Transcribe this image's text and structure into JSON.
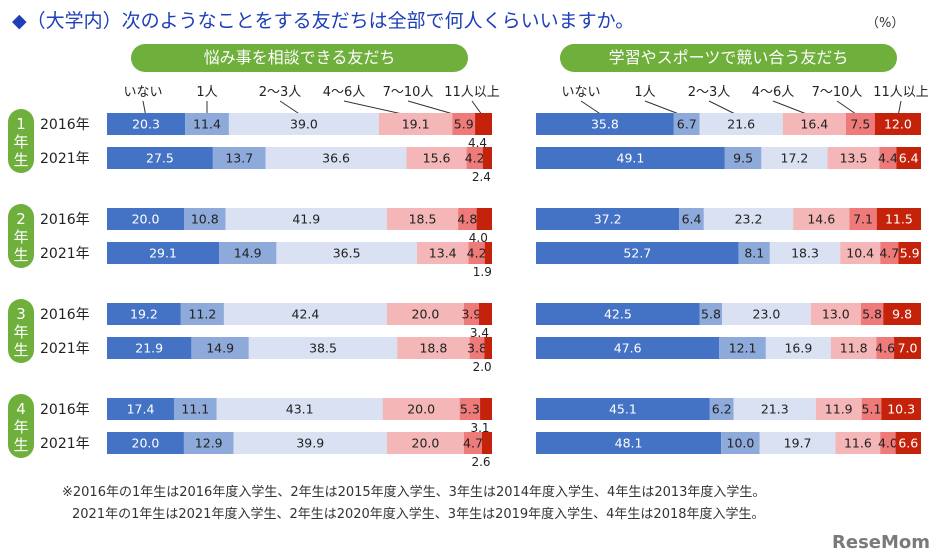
{
  "header": {
    "title": "◆（大学内）次のようなことをする友だちは全部で何人くらいいますか。",
    "unit": "（%）"
  },
  "colors": {
    "title_blue": "#1f3fb8",
    "pill_green": "#6faf3c",
    "grade_green": "#6faf3c",
    "segments": [
      "#4472c4",
      "#8eaadb",
      "#d9e1f2",
      "#f4b6b6",
      "#ef7a7a",
      "#c4220a"
    ]
  },
  "chart_data": [
    {
      "type": "bar",
      "stacked": true,
      "orientation": "horizontal",
      "title": "悩み事を相談できる友だち",
      "legend": [
        "いない",
        "1人",
        "2〜3人",
        "4〜6人",
        "7〜10人",
        "11人以上"
      ],
      "grades": [
        "1年生",
        "2年生",
        "3年生",
        "4年生"
      ],
      "years": [
        "2016年",
        "2021年"
      ],
      "rows": [
        {
          "grade": "1年生",
          "year": "2016年",
          "values": [
            20.3,
            11.4,
            39.0,
            19.1,
            5.9,
            4.4
          ]
        },
        {
          "grade": "1年生",
          "year": "2021年",
          "values": [
            27.5,
            13.7,
            36.6,
            15.6,
            4.2,
            2.4
          ]
        },
        {
          "grade": "2年生",
          "year": "2016年",
          "values": [
            20.0,
            10.8,
            41.9,
            18.5,
            4.8,
            4.0
          ]
        },
        {
          "grade": "2年生",
          "year": "2021年",
          "values": [
            29.1,
            14.9,
            36.5,
            13.4,
            4.2,
            1.9
          ]
        },
        {
          "grade": "3年生",
          "year": "2016年",
          "values": [
            19.2,
            11.2,
            42.4,
            20.0,
            3.9,
            3.4
          ]
        },
        {
          "grade": "3年生",
          "year": "2021年",
          "values": [
            21.9,
            14.9,
            38.5,
            18.8,
            3.8,
            2.0
          ]
        },
        {
          "grade": "4年生",
          "year": "2016年",
          "values": [
            17.4,
            11.1,
            43.1,
            20.0,
            5.3,
            3.1
          ]
        },
        {
          "grade": "4年生",
          "year": "2021年",
          "values": [
            20.0,
            12.9,
            39.9,
            20.0,
            4.7,
            2.6
          ]
        }
      ]
    },
    {
      "type": "bar",
      "stacked": true,
      "orientation": "horizontal",
      "title": "学習やスポーツで競い合う友だち",
      "legend": [
        "いない",
        "1人",
        "2〜3人",
        "4〜6人",
        "7〜10人",
        "11人以上"
      ],
      "grades": [
        "1年生",
        "2年生",
        "3年生",
        "4年生"
      ],
      "years": [
        "2016年",
        "2021年"
      ],
      "rows": [
        {
          "grade": "1年生",
          "year": "2016年",
          "values": [
            35.8,
            6.7,
            21.6,
            16.4,
            7.5,
            12.0
          ]
        },
        {
          "grade": "1年生",
          "year": "2021年",
          "values": [
            49.1,
            9.5,
            17.2,
            13.5,
            4.4,
            6.4
          ]
        },
        {
          "grade": "2年生",
          "year": "2016年",
          "values": [
            37.2,
            6.4,
            23.2,
            14.6,
            7.1,
            11.5
          ]
        },
        {
          "grade": "2年生",
          "year": "2021年",
          "values": [
            52.7,
            8.1,
            18.3,
            10.4,
            4.7,
            5.9
          ]
        },
        {
          "grade": "3年生",
          "year": "2016年",
          "values": [
            42.5,
            5.8,
            23.0,
            13.0,
            5.8,
            9.8
          ]
        },
        {
          "grade": "3年生",
          "year": "2021年",
          "values": [
            47.6,
            12.1,
            16.9,
            11.8,
            4.6,
            7.0
          ]
        },
        {
          "grade": "4年生",
          "year": "2016年",
          "values": [
            45.1,
            6.2,
            21.3,
            11.9,
            5.1,
            10.3
          ]
        },
        {
          "grade": "4年生",
          "year": "2021年",
          "values": [
            48.1,
            10.0,
            19.7,
            11.6,
            4.0,
            6.6
          ]
        }
      ]
    }
  ],
  "footnotes": [
    "※2016年の1年生は2016年度入学生、2年生は2015年度入学生、3年生は2014年度入学生、4年生は2013年度入学生。",
    "2021年の1年生は2021年度入学生、2年生は2020年度入学生、3年生は2019年度入学生、4年生は2018年度入学生。"
  ],
  "watermark": "ReseMom"
}
